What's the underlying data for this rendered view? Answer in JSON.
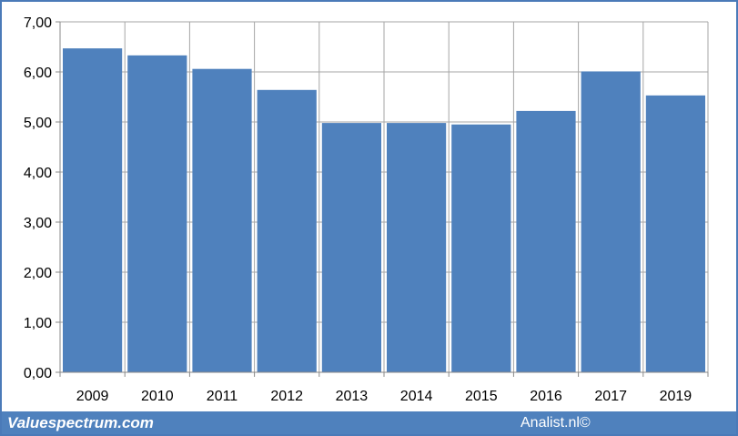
{
  "chart_data": {
    "type": "bar",
    "categories": [
      "2009",
      "2010",
      "2011",
      "2012",
      "2013",
      "2014",
      "2015",
      "2016",
      "2017",
      "2019"
    ],
    "values": [
      6.47,
      6.33,
      6.06,
      5.64,
      4.98,
      4.98,
      4.95,
      5.22,
      6.01,
      5.53
    ],
    "title": "",
    "xlabel": "",
    "ylabel": "",
    "ylim": [
      0,
      7
    ],
    "yticks": [
      "0,00",
      "1,00",
      "2,00",
      "3,00",
      "4,00",
      "5,00",
      "6,00",
      "7,00"
    ],
    "grid": true,
    "bar_color": "#4f81bd",
    "grid_color": "#a6a6a6"
  },
  "footer": {
    "left_text": "Valuespectrum.com",
    "right_text": "Analist.nl©",
    "background": "#4f81bd"
  }
}
